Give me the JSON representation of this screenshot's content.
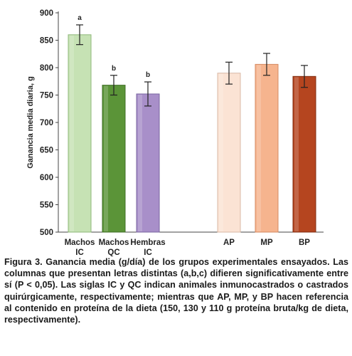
{
  "chart_data": {
    "type": "bar",
    "title": "",
    "xlabel": "",
    "ylabel": "Ganancia media diaria, g",
    "ylim": [
      500,
      900
    ],
    "yticks": [
      500,
      550,
      600,
      650,
      700,
      750,
      800,
      850,
      900
    ],
    "grid": false,
    "legend": "none",
    "categories": [
      [
        "Machos",
        "IC"
      ],
      [
        "Machos",
        "QC"
      ],
      [
        "Hembras",
        "IC"
      ],
      [
        "AP"
      ],
      [
        "MP"
      ],
      [
        "BP"
      ]
    ],
    "values": [
      860,
      768,
      752,
      790,
      806,
      784
    ],
    "errors": [
      18,
      18,
      22,
      20,
      20,
      20
    ],
    "significance": [
      "a",
      "b",
      "b",
      "",
      "",
      ""
    ],
    "colors": [
      "#c6e2b4",
      "#5b9438",
      "#a88fc9",
      "#fbe3d4",
      "#f6b48e",
      "#b5451f"
    ],
    "edge_colors": [
      "#8fb87a",
      "#3f6e24",
      "#7a65a0",
      "#d9b9a6",
      "#d48a62",
      "#7f2c10"
    ]
  },
  "caption": "Figura 3. Ganancia media (g/día) de los grupos experimentales ensayados. Las columnas que presentan letras distintas (a,b,c) difieren significativamente entre sí (P < 0,05). Las siglas IC y QC indican animales inmunocastrados o castrados quirúrgicamente, respectivamente; mientras que AP, MP, y BP hacen referencia al contenido en proteína de la dieta (150, 130 y 110 g proteína bruta/kg de dieta, respectivamente)."
}
